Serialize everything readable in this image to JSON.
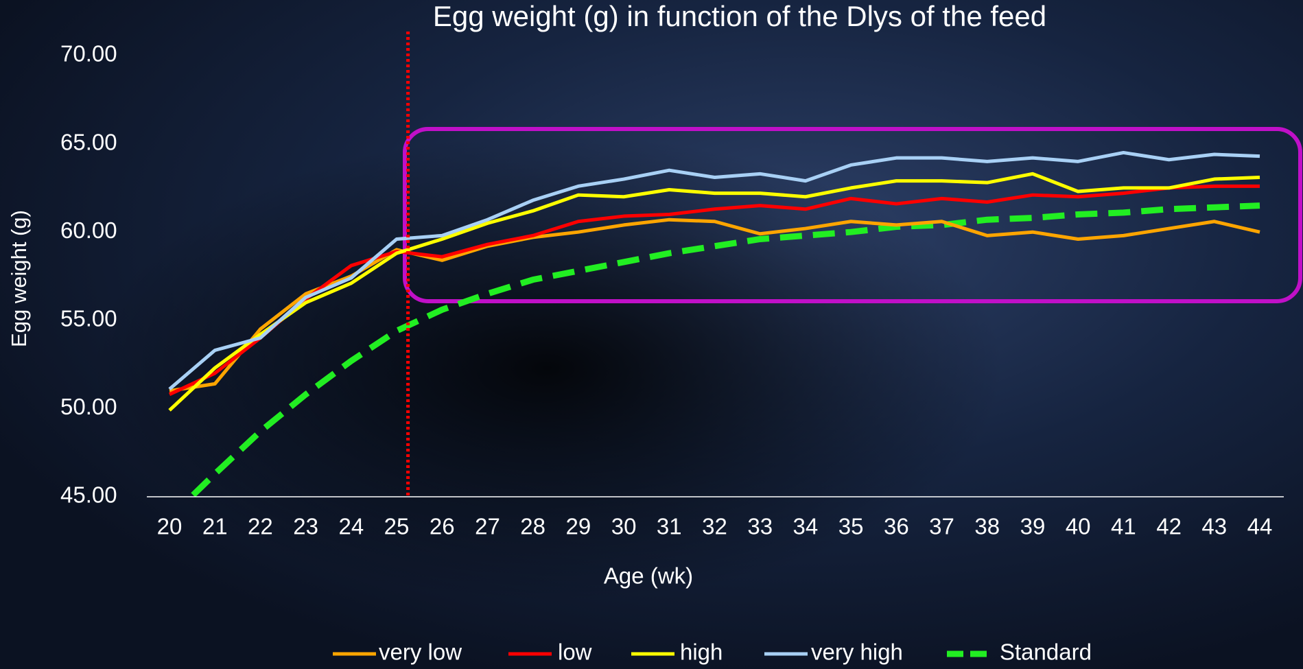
{
  "chart_data": {
    "type": "line",
    "title": "Egg weight (g) in function of the Dlys of the feed",
    "x_label": "Age (wk)",
    "y_label": "Egg weight (g)",
    "categories": [
      "20",
      "21",
      "22",
      "23",
      "24",
      "25",
      "26",
      "27",
      "28",
      "29",
      "30",
      "31",
      "32",
      "33",
      "34",
      "35",
      "36",
      "37",
      "38",
      "39",
      "40",
      "41",
      "42",
      "43",
      "44"
    ],
    "ylim": [
      45,
      70
    ],
    "yticks": [
      {
        "value": 45,
        "label": "45.00"
      },
      {
        "value": 50,
        "label": "50.00"
      },
      {
        "value": 55,
        "label": "55.00"
      },
      {
        "value": 60,
        "label": "60.00"
      },
      {
        "value": 65,
        "label": "65.00"
      },
      {
        "value": 70,
        "label": "70.00"
      }
    ],
    "reference_line": {
      "x": 25.25,
      "color": "#ff0000"
    },
    "legend": "bottom",
    "series": [
      {
        "name": "very low",
        "color": "#ffa500",
        "values": [
          51.0,
          51.4,
          54.5,
          56.5,
          57.5,
          59.0,
          58.4,
          59.2,
          59.7,
          60.0,
          60.4,
          60.7,
          60.6,
          59.9,
          60.2,
          60.6,
          60.4,
          60.6,
          59.8,
          60.0,
          59.6,
          59.8,
          60.2,
          60.6,
          60.0
        ]
      },
      {
        "name": "low",
        "color": "#ff0000",
        "values": [
          50.8,
          52.0,
          54.0,
          56.2,
          58.1,
          58.9,
          58.6,
          59.3,
          59.8,
          60.6,
          60.9,
          61.0,
          61.3,
          61.5,
          61.3,
          61.9,
          61.6,
          61.9,
          61.7,
          62.1,
          62.0,
          62.2,
          62.5,
          62.6,
          62.6
        ]
      },
      {
        "name": "high",
        "color": "#ffff00",
        "values": [
          49.9,
          52.3,
          54.2,
          56.0,
          57.1,
          58.8,
          59.6,
          60.5,
          61.2,
          62.1,
          62.0,
          62.4,
          62.2,
          62.2,
          62.0,
          62.5,
          62.9,
          62.9,
          62.8,
          63.3,
          62.3,
          62.5,
          62.5,
          63.0,
          63.1
        ]
      },
      {
        "name": "very high",
        "color": "#a8d0f5",
        "values": [
          51.1,
          53.3,
          54.0,
          56.3,
          57.4,
          59.6,
          59.8,
          60.7,
          61.8,
          62.6,
          63.0,
          63.5,
          63.1,
          63.3,
          62.9,
          63.8,
          64.2,
          64.2,
          64.0,
          64.2,
          64.0,
          64.5,
          64.1,
          64.4,
          64.3
        ]
      },
      {
        "name": "Standard",
        "color": "#22ee22",
        "dashed": true,
        "values": [
          43.8,
          46.3,
          48.7,
          50.8,
          52.7,
          54.4,
          55.6,
          56.5,
          57.3,
          57.8,
          58.3,
          58.8,
          59.2,
          59.6,
          59.8,
          60.0,
          60.3,
          60.4,
          60.7,
          60.8,
          61.0,
          61.1,
          61.3,
          61.4,
          61.5
        ]
      }
    ]
  }
}
